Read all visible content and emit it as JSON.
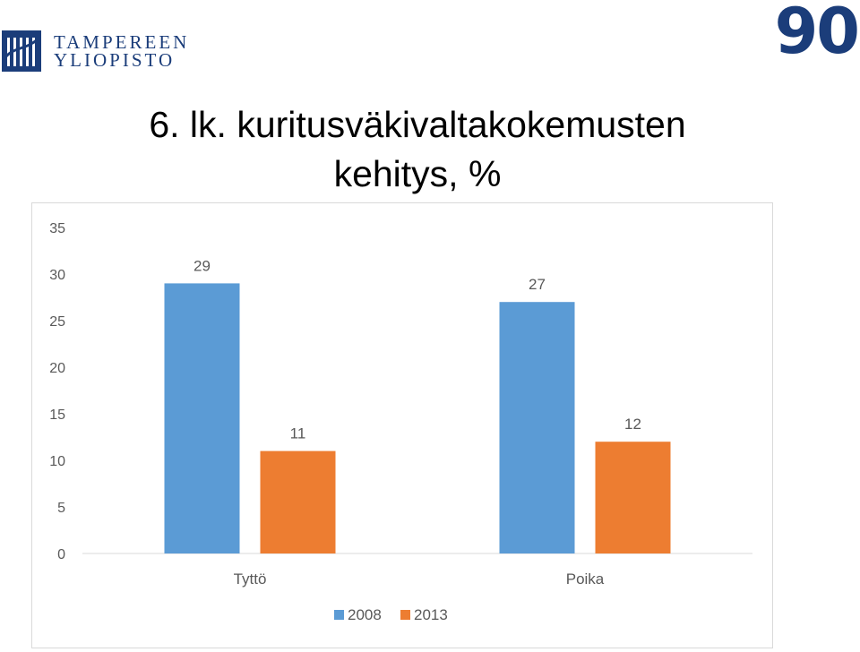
{
  "header": {
    "logo_line1": "TAMPEREEN",
    "logo_line2": "YLIOPISTO",
    "badge": "90",
    "title_line1": "6. lk. kuritusväkivaltakokemusten",
    "title_line2": "kehitys, %"
  },
  "colors": {
    "brand": "#1b3d7a",
    "series_2008": "#5b9bd5",
    "series_2013": "#ed7d31",
    "gridline": "#d9d9d9",
    "axis_text": "#595959"
  },
  "chart_data": {
    "type": "bar",
    "categories": [
      "Tyttö",
      "Poika"
    ],
    "series": [
      {
        "name": "2008",
        "values": [
          29,
          27
        ]
      },
      {
        "name": "2013",
        "values": [
          11,
          12
        ]
      }
    ],
    "ylim": [
      0,
      35
    ],
    "yticks": [
      "0",
      "5",
      "10",
      "15",
      "20",
      "25",
      "30",
      "35"
    ],
    "grid": false,
    "legend_position": "bottom"
  }
}
